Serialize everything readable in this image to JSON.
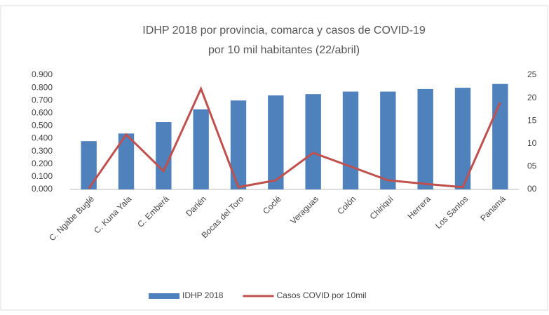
{
  "chart_data": {
    "type": "bar",
    "title": [
      "IDHP 2018 por provincia, comarca y casos de COVID-19",
      "por 10 mil habitantes (22/abril)"
    ],
    "categories": [
      "C. Ngäbe Buglé",
      "C. Kuna Yala",
      "C. Emberá",
      "Darién",
      "Bocas del Toro",
      "Coclé",
      "Veraguas",
      "Colón",
      "Chiriquí",
      "Herrera",
      "Los Santos",
      "Panamá"
    ],
    "series": [
      {
        "name": "IDHP 2018",
        "type": "bar",
        "color": "#4f81bd",
        "values": [
          0.38,
          0.44,
          0.53,
          0.63,
          0.7,
          0.74,
          0.75,
          0.77,
          0.77,
          0.79,
          0.8,
          0.83
        ]
      },
      {
        "name": "Casos COVID por 10mil",
        "type": "line",
        "axis": "y2",
        "color": "#c0504d",
        "values": [
          0.2,
          12,
          4,
          22,
          0.5,
          2,
          8,
          5,
          2,
          1.2,
          0.5,
          19
        ]
      }
    ],
    "ylim": [
      0,
      0.9
    ],
    "yticks": [
      {
        "value": 0,
        "label": "0.000"
      },
      {
        "value": 0.1,
        "label": "0.100"
      },
      {
        "value": 0.2,
        "label": "0.200"
      },
      {
        "value": 0.3,
        "label": "0.300"
      },
      {
        "value": 0.4,
        "label": "0.400"
      },
      {
        "value": 0.5,
        "label": "0.500"
      },
      {
        "value": 0.6,
        "label": "0.600"
      },
      {
        "value": 0.7,
        "label": "0.700"
      },
      {
        "value": 0.8,
        "label": "0.800"
      },
      {
        "value": 0.9,
        "label": "0.900"
      }
    ],
    "y2lim": [
      0,
      25
    ],
    "y2ticks": [
      {
        "value": 0,
        "label": "00"
      },
      {
        "value": 5,
        "label": "05"
      },
      10,
      15,
      20,
      25
    ],
    "legend": "bottom",
    "grid": false
  }
}
